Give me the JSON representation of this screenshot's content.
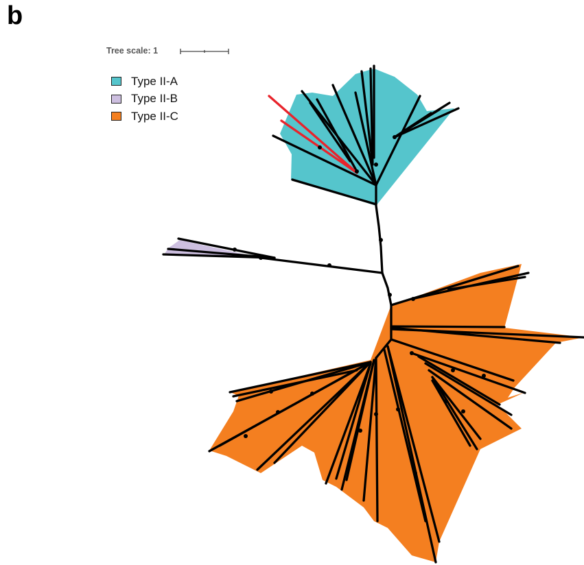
{
  "panel_label": "b",
  "tree_scale": {
    "label": "Tree scale: 1"
  },
  "legend": [
    {
      "label": "Type II-A",
      "color": "#55C5CC"
    },
    {
      "label": "Type II-B",
      "color": "#CDBFE0"
    },
    {
      "label": "Type II-C",
      "color": "#F47F20"
    }
  ],
  "colors": {
    "branch": "#000000",
    "highlighted_branch": "#E8232B"
  }
}
